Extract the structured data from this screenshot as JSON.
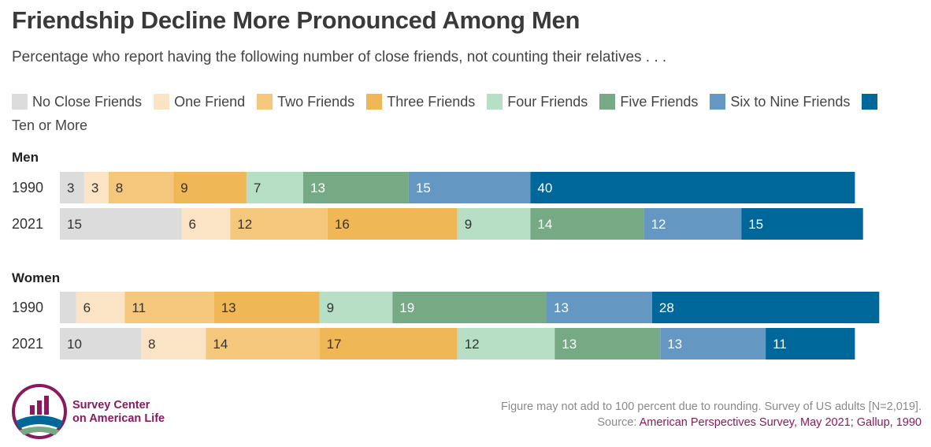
{
  "title": "Friendship Decline More Pronounced Among Men",
  "subtitle": "Percentage who report having the following number of close friends, not counting their relatives . . .",
  "colors": {
    "No Close Friends": "#dcdcdc",
    "One Friend": "#fbe3c6",
    "Two Friends": "#f5c77c",
    "Three Friends": "#efb755",
    "Four Friends": "#b7dfc6",
    "Five Friends": "#76aa85",
    "Six to Nine Friends": "#6498c3",
    "Ten or More": "#00679a"
  },
  "chart_data": {
    "type": "bar",
    "orientation": "horizontal",
    "stacked": true,
    "title": "Friendship Decline More Pronounced Among Men",
    "subtitle": "Percentage who report having the following number of close friends, not counting their relatives . . .",
    "legend": [
      "No Close Friends",
      "One Friend",
      "Two Friends",
      "Three Friends",
      "Four Friends",
      "Five Friends",
      "Six to Nine Friends",
      "Ten or More"
    ],
    "legend_position": "top",
    "groups": [
      {
        "label": "Men",
        "rows": [
          {
            "year": "1990",
            "values": [
              3,
              3,
              8,
              9,
              7,
              13,
              15,
              40
            ]
          },
          {
            "year": "2021",
            "values": [
              15,
              6,
              12,
              16,
              9,
              14,
              12,
              15
            ]
          }
        ]
      },
      {
        "label": "Women",
        "rows": [
          {
            "year": "1990",
            "values": [
              2,
              6,
              11,
              13,
              9,
              19,
              13,
              28
            ]
          },
          {
            "year": "2021",
            "values": [
              10,
              8,
              14,
              17,
              12,
              13,
              13,
              11
            ]
          }
        ]
      }
    ]
  },
  "footer": {
    "note": "Figure may not add to 100 percent due to rounding. Survey of US adults [N=2,019].",
    "source_label": "Source:",
    "source": "American Perspectives Survey, May 2021; Gallup, 1990"
  },
  "logo": {
    "line1": "Survey Center",
    "line2": "on American Life"
  }
}
